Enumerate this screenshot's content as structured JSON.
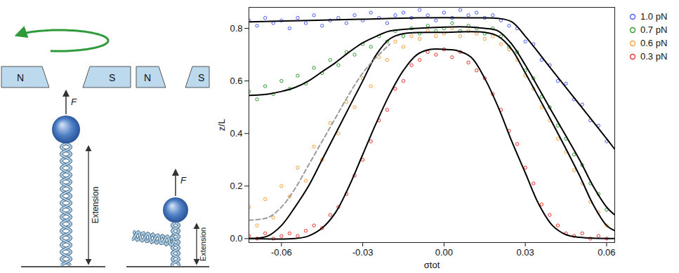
{
  "diagram": {
    "left_setup": {
      "magnets": [
        "N",
        "S"
      ],
      "force_label": "F",
      "extension_label": "Extension"
    },
    "right_setup": {
      "magnets": [
        "N",
        "S"
      ],
      "force_label": "F",
      "extension_label": "Extension"
    }
  },
  "chart_data": {
    "type": "scatter",
    "x_label": "σtot",
    "y_label": "z/L",
    "xlim": [
      -0.072,
      0.063
    ],
    "ylim": [
      -0.015,
      0.88
    ],
    "xticks": [
      -0.06,
      -0.03,
      {
        "value": 0,
        "label": "0.00"
      },
      0.03,
      0.06
    ],
    "yticks": [
      {
        "value": 0,
        "label": "0.0"
      },
      0.2,
      0.4,
      0.6,
      0.8
    ],
    "grid": false,
    "legend": "right",
    "x": [
      -0.072,
      -0.069,
      -0.066,
      -0.063,
      -0.06,
      -0.057,
      -0.054,
      -0.051,
      -0.048,
      -0.045,
      -0.042,
      -0.039,
      -0.036,
      -0.033,
      -0.03,
      -0.027,
      -0.024,
      -0.021,
      -0.018,
      -0.015,
      -0.012,
      -0.009,
      -0.006,
      -0.003,
      0.0,
      0.003,
      0.006,
      0.009,
      0.012,
      0.015,
      0.018,
      0.021,
      0.024,
      0.027,
      0.03,
      0.033,
      0.036,
      0.039,
      0.042,
      0.045,
      0.048,
      0.051,
      0.054,
      0.057,
      0.06
    ],
    "series": [
      {
        "name": "1.0 pN",
        "color": "#4a5cf0",
        "marker": "circle",
        "values": [
          0.83,
          0.81,
          0.84,
          0.82,
          0.83,
          0.8,
          0.84,
          0.82,
          0.85,
          0.81,
          0.83,
          0.84,
          0.82,
          0.85,
          0.83,
          0.86,
          0.84,
          0.82,
          0.85,
          0.86,
          0.84,
          0.87,
          0.85,
          0.83,
          0.86,
          0.84,
          0.87,
          0.85,
          0.86,
          0.84,
          0.85,
          0.83,
          0.81,
          0.8,
          0.75,
          0.74,
          0.68,
          0.66,
          0.6,
          0.59,
          0.53,
          0.51,
          0.45,
          0.43,
          0.37
        ]
      },
      {
        "name": "0.7 pN",
        "color": "#2e9a2e",
        "marker": "circle",
        "values": [
          0.56,
          0.53,
          0.58,
          0.55,
          0.6,
          0.57,
          0.62,
          0.59,
          0.65,
          0.63,
          0.68,
          0.66,
          0.71,
          0.7,
          0.74,
          0.73,
          0.77,
          0.75,
          0.79,
          0.77,
          0.8,
          0.78,
          0.81,
          0.79,
          0.8,
          0.82,
          0.79,
          0.81,
          0.8,
          0.78,
          0.8,
          0.77,
          0.73,
          0.71,
          0.64,
          0.61,
          0.54,
          0.5,
          0.43,
          0.38,
          0.32,
          0.28,
          0.21,
          0.17,
          0.11
        ]
      },
      {
        "name": "0.6 pN",
        "color": "#f5a040",
        "marker": "circle",
        "values": [
          0.12,
          0.05,
          0.15,
          0.08,
          0.2,
          0.16,
          0.27,
          0.22,
          0.35,
          0.3,
          0.44,
          0.4,
          0.52,
          0.5,
          0.61,
          0.58,
          0.69,
          0.68,
          0.75,
          0.73,
          0.77,
          0.76,
          0.79,
          0.77,
          0.78,
          0.8,
          0.77,
          0.79,
          0.78,
          0.76,
          0.77,
          0.74,
          0.72,
          0.68,
          0.62,
          0.57,
          0.5,
          0.45,
          0.38,
          0.33,
          0.26,
          0.21,
          0.14,
          0.1,
          0.05
        ]
      },
      {
        "name": "0.3 pN",
        "color": "#e8302a",
        "marker": "circle",
        "values": [
          0.01,
          0.0,
          0.02,
          0.0,
          0.01,
          0.02,
          0.01,
          0.03,
          0.05,
          0.04,
          0.09,
          0.12,
          0.17,
          0.24,
          0.3,
          0.37,
          0.45,
          0.49,
          0.57,
          0.6,
          0.66,
          0.68,
          0.71,
          0.7,
          0.72,
          0.69,
          0.71,
          0.67,
          0.64,
          0.61,
          0.55,
          0.49,
          0.41,
          0.36,
          0.27,
          0.21,
          0.13,
          0.09,
          0.05,
          0.02,
          0.01,
          0.02,
          0.0,
          0.01,
          0.0
        ]
      }
    ],
    "fits": [
      {
        "color": "#000000",
        "line_style": "solid",
        "x": [
          -0.072,
          -0.05,
          -0.03,
          -0.01,
          0.01,
          0.02,
          0.025,
          0.03,
          0.04,
          0.05,
          0.06,
          0.063
        ],
        "values": [
          0.825,
          0.83,
          0.835,
          0.84,
          0.84,
          0.838,
          0.825,
          0.77,
          0.64,
          0.51,
          0.38,
          0.34
        ]
      },
      {
        "color": "#000000",
        "line_style": "solid",
        "x": [
          -0.072,
          -0.065,
          -0.06,
          -0.055,
          -0.05,
          -0.045,
          -0.04,
          -0.035,
          -0.03,
          -0.025,
          -0.02,
          -0.01,
          0,
          0.01,
          0.015,
          0.02,
          0.025,
          0.03,
          0.04,
          0.05,
          0.055,
          0.06,
          0.063
        ],
        "values": [
          0.545,
          0.55,
          0.56,
          0.575,
          0.6,
          0.635,
          0.67,
          0.71,
          0.745,
          0.77,
          0.79,
          0.8,
          0.805,
          0.805,
          0.8,
          0.79,
          0.74,
          0.66,
          0.48,
          0.3,
          0.2,
          0.12,
          0.09
        ]
      },
      {
        "color": "#000000",
        "line_style": "solid",
        "x": [
          -0.072,
          -0.065,
          -0.06,
          -0.055,
          -0.05,
          -0.045,
          -0.04,
          -0.035,
          -0.03,
          -0.025,
          -0.02,
          -0.015,
          0,
          0.015,
          0.02,
          0.025,
          0.03,
          0.04,
          0.05,
          0.055,
          0.06,
          0.063
        ],
        "values": [
          0.0,
          0.01,
          0.05,
          0.12,
          0.2,
          0.3,
          0.4,
          0.5,
          0.6,
          0.7,
          0.76,
          0.78,
          0.785,
          0.785,
          0.77,
          0.72,
          0.63,
          0.44,
          0.24,
          0.13,
          0.05,
          0.03
        ]
      },
      {
        "color": "#000000",
        "line_style": "solid",
        "x": [
          -0.072,
          -0.055,
          -0.05,
          -0.045,
          -0.04,
          -0.035,
          -0.03,
          -0.025,
          -0.02,
          -0.015,
          -0.01,
          -0.005,
          0,
          0.005,
          0.01,
          0.015,
          0.02,
          0.025,
          0.03,
          0.035,
          0.04,
          0.045,
          0.05,
          0.063
        ],
        "values": [
          0,
          0,
          0.01,
          0.04,
          0.1,
          0.2,
          0.32,
          0.44,
          0.55,
          0.64,
          0.7,
          0.72,
          0.72,
          0.715,
          0.69,
          0.61,
          0.5,
          0.37,
          0.25,
          0.13,
          0.05,
          0.015,
          0.005,
          0
        ]
      },
      {
        "color": "#9a9a9a",
        "line_style": "dashed",
        "x": [
          -0.072,
          -0.065,
          -0.06,
          -0.055,
          -0.05,
          -0.045,
          -0.04,
          -0.035,
          -0.03,
          -0.025,
          -0.02
        ],
        "values": [
          0.07,
          0.08,
          0.12,
          0.19,
          0.28,
          0.37,
          0.46,
          0.55,
          0.63,
          0.69,
          0.74
        ]
      }
    ]
  }
}
